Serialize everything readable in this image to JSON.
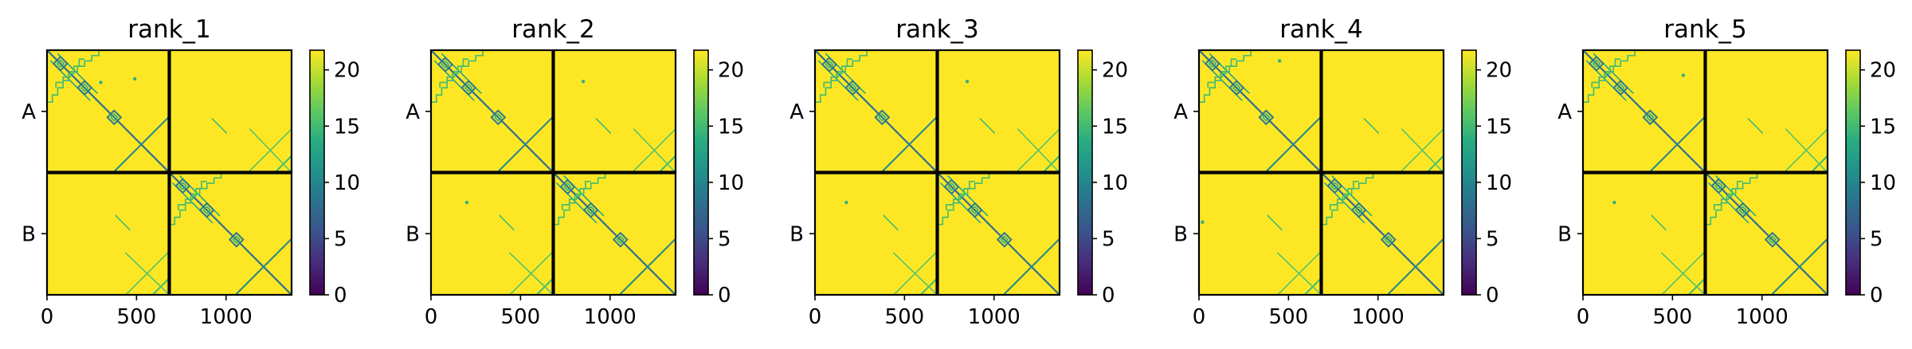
{
  "chart_data": [
    {
      "type": "heatmap",
      "title": "rank_1",
      "x": {
        "ticks": [
          0,
          500,
          1000
        ],
        "lim": [
          0,
          1366
        ]
      },
      "y": {
        "tick_labels": [
          "A",
          "B"
        ],
        "chain_length": 683
      },
      "colorbar": {
        "ticks": [
          0,
          5,
          10,
          15,
          20
        ],
        "lim": [
          0,
          21.75
        ]
      },
      "cmap": "viridis",
      "background_value": 21.75,
      "features": {
        "local_diamond_centers": [
          75,
          210,
          375
        ],
        "off_diagonal_strands": [
          [
            300,
            200,
            520,
            190
          ],
          [
            490,
            430,
            560,
            160
          ]
        ],
        "interchain_cross_diag": [
          [
            1100,
            850,
            1366,
            590
          ]
        ],
        "small_features": [
          [
            300,
            180,
            490,
            160
          ]
        ]
      }
    },
    {
      "type": "heatmap",
      "title": "rank_2",
      "x": {
        "ticks": [
          0,
          500,
          1000
        ],
        "lim": [
          0,
          1366
        ]
      },
      "y": {
        "tick_labels": [
          "A",
          "B"
        ],
        "chain_length": 683
      },
      "colorbar": {
        "ticks": [
          0,
          5,
          10,
          15,
          20
        ],
        "lim": [
          0,
          21.75
        ]
      },
      "cmap": "viridis",
      "background_value": 21.75,
      "features": {
        "local_diamond_centers": [
          80,
          210,
          375
        ],
        "off_diagonal_strands": [
          [
            300,
            200,
            520,
            190
          ],
          [
            490,
            430,
            560,
            160
          ]
        ],
        "interchain_cross_diag": [
          [
            1100,
            850,
            1366,
            590
          ]
        ],
        "small_features": [
          [
            850,
            175,
            200,
            850
          ]
        ]
      }
    },
    {
      "type": "heatmap",
      "title": "rank_3",
      "x": {
        "ticks": [
          0,
          500,
          1000
        ],
        "lim": [
          0,
          1366
        ]
      },
      "y": {
        "tick_labels": [
          "A",
          "B"
        ],
        "chain_length": 683
      },
      "colorbar": {
        "ticks": [
          0,
          5,
          10,
          15,
          20
        ],
        "lim": [
          0,
          21.75
        ]
      },
      "cmap": "viridis",
      "background_value": 21.75,
      "features": {
        "local_diamond_centers": [
          80,
          210,
          375
        ],
        "off_diagonal_strands": [
          [
            300,
            200,
            520,
            190
          ],
          [
            490,
            430,
            560,
            160
          ]
        ],
        "interchain_cross_diag": [
          [
            1100,
            850,
            1366,
            590
          ]
        ],
        "small_features": [
          [
            850,
            175,
            175,
            850
          ]
        ]
      }
    },
    {
      "type": "heatmap",
      "title": "rank_4",
      "x": {
        "ticks": [
          0,
          500,
          1000
        ],
        "lim": [
          0,
          1366
        ]
      },
      "y": {
        "tick_labels": [
          "A",
          "B"
        ],
        "chain_length": 683
      },
      "colorbar": {
        "ticks": [
          0,
          5,
          10,
          15,
          20
        ],
        "lim": [
          0,
          21.75
        ]
      },
      "cmap": "viridis",
      "background_value": 21.75,
      "features": {
        "local_diamond_centers": [
          75,
          210,
          375
        ],
        "off_diagonal_strands": [
          [
            300,
            200,
            520,
            190
          ],
          [
            490,
            430,
            560,
            160
          ]
        ],
        "interchain_cross_diag": [
          [
            1100,
            850,
            1366,
            590
          ]
        ],
        "small_features": [
          [
            450,
            60,
            20,
            960
          ]
        ]
      }
    },
    {
      "type": "heatmap",
      "title": "rank_5",
      "x": {
        "ticks": [
          0,
          500,
          1000
        ],
        "lim": [
          0,
          1366
        ]
      },
      "y": {
        "tick_labels": [
          "A",
          "B"
        ],
        "chain_length": 683
      },
      "colorbar": {
        "ticks": [
          0,
          5,
          10,
          15,
          20
        ],
        "lim": [
          0,
          21.75
        ]
      },
      "cmap": "viridis",
      "background_value": 21.75,
      "features": {
        "local_diamond_centers": [
          75,
          210,
          375
        ],
        "off_diagonal_strands": [
          [
            300,
            200,
            520,
            190
          ],
          [
            490,
            430,
            560,
            160
          ]
        ],
        "interchain_cross_diag": [
          [
            1100,
            850,
            1366,
            590
          ]
        ],
        "small_features": [
          [
            175,
            850,
            560,
            140
          ]
        ]
      }
    }
  ]
}
